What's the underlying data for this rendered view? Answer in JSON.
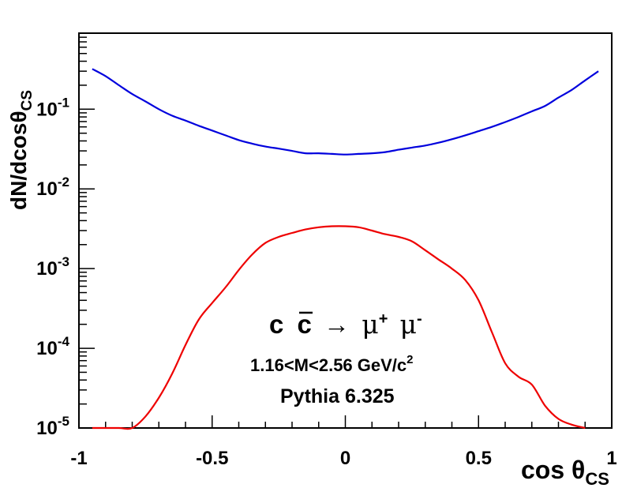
{
  "chart_data": {
    "type": "line",
    "title": "",
    "xlabel": "cos θ",
    "xlabel_sub": "CS",
    "ylabel": "dN/dcosθ",
    "ylabel_sub": "CS",
    "xlim": [
      -1,
      1
    ],
    "ylim": [
      1e-05,
      0.9
    ],
    "yscale": "log",
    "x_ticks": [
      {
        "value": -1,
        "label": "-1"
      },
      {
        "value": -0.5,
        "label": "-0.5"
      },
      {
        "value": 0,
        "label": "0"
      },
      {
        "value": 0.5,
        "label": "0.5"
      },
      {
        "value": 1,
        "label": "1"
      }
    ],
    "y_ticks": [
      {
        "value": 0.1,
        "base": "10",
        "exp": "-1"
      },
      {
        "value": 0.01,
        "base": "10",
        "exp": "-2"
      },
      {
        "value": 0.001,
        "base": "10",
        "exp": "-3"
      },
      {
        "value": 0.0001,
        "base": "10",
        "exp": "-4"
      },
      {
        "value": 1e-05,
        "base": "10",
        "exp": "-5"
      }
    ],
    "series": [
      {
        "name": "upper",
        "color": "#0000dd",
        "x": [
          -0.95,
          -0.9,
          -0.85,
          -0.8,
          -0.75,
          -0.7,
          -0.65,
          -0.6,
          -0.55,
          -0.5,
          -0.45,
          -0.4,
          -0.35,
          -0.3,
          -0.25,
          -0.2,
          -0.15,
          -0.1,
          -0.05,
          0,
          0.05,
          0.1,
          0.15,
          0.2,
          0.25,
          0.3,
          0.35,
          0.4,
          0.45,
          0.5,
          0.55,
          0.6,
          0.65,
          0.7,
          0.75,
          0.8,
          0.85,
          0.9,
          0.95
        ],
        "values": [
          0.32,
          0.26,
          0.2,
          0.155,
          0.125,
          0.1,
          0.083,
          0.072,
          0.062,
          0.054,
          0.047,
          0.041,
          0.037,
          0.034,
          0.032,
          0.03,
          0.028,
          0.028,
          0.0275,
          0.027,
          0.0275,
          0.028,
          0.029,
          0.031,
          0.033,
          0.035,
          0.038,
          0.042,
          0.047,
          0.053,
          0.06,
          0.069,
          0.08,
          0.094,
          0.11,
          0.14,
          0.175,
          0.23,
          0.3
        ]
      },
      {
        "name": "lower",
        "color": "#ee0000",
        "x": [
          -0.95,
          -0.9,
          -0.85,
          -0.8,
          -0.75,
          -0.7,
          -0.65,
          -0.6,
          -0.55,
          -0.5,
          -0.45,
          -0.4,
          -0.35,
          -0.3,
          -0.25,
          -0.2,
          -0.15,
          -0.1,
          -0.05,
          0,
          0.05,
          0.1,
          0.15,
          0.2,
          0.25,
          0.3,
          0.35,
          0.4,
          0.45,
          0.5,
          0.55,
          0.6,
          0.65,
          0.7,
          0.75,
          0.8,
          0.85,
          0.9
        ],
        "values": [
          1e-05,
          1e-05,
          1e-05,
          9.5e-06,
          1.4e-05,
          2.4e-05,
          4.8e-05,
          0.00011,
          0.00023,
          0.00037,
          0.00058,
          0.00096,
          0.0015,
          0.0021,
          0.0025,
          0.0028,
          0.0031,
          0.0033,
          0.0034,
          0.0034,
          0.0033,
          0.003,
          0.0027,
          0.0025,
          0.0022,
          0.0017,
          0.0013,
          0.001,
          0.00072,
          0.0004,
          0.00016,
          6.5e-05,
          4.4e-05,
          3.5e-05,
          1.9e-05,
          1.3e-05,
          1.1e-05,
          1e-05
        ]
      }
    ],
    "annotations": [
      {
        "id": "process",
        "text": "c c̄ → μ⁺ μ⁻"
      },
      {
        "id": "mass",
        "text": "1.16<M<2.56 GeV/c²"
      },
      {
        "id": "generator",
        "text": "Pythia 6.325"
      }
    ]
  },
  "annotation_text": {
    "c1": "c",
    "c2": "c",
    "arrow": "→",
    "mu1": "μ",
    "plus": "+",
    "mu2": "μ",
    "minus": "-",
    "mass_main": "1.16<M<2.56 GeV/c",
    "mass_sup": "2",
    "generator": "Pythia 6.325"
  }
}
